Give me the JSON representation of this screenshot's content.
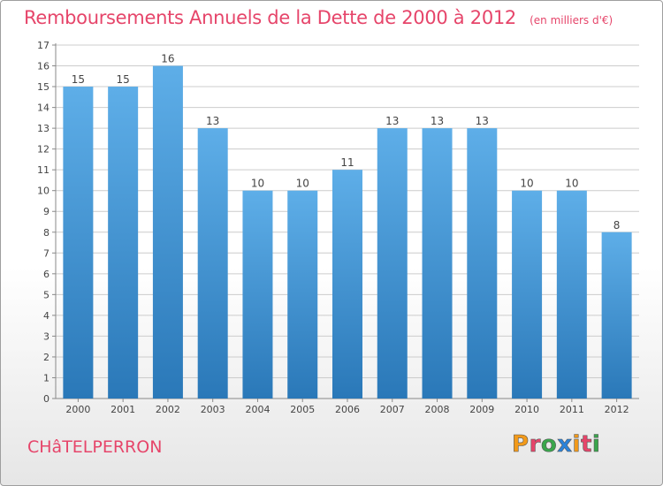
{
  "header": {
    "title": "Remboursements Annuels de la Dette de 2000 à 2012",
    "unit": "(en milliers d'€)"
  },
  "footer": {
    "commune": "CHâTELPERRON",
    "brand": "Proxiti",
    "brand_colors": [
      "#f29a1a",
      "#e6456a",
      "#3aa64c",
      "#2b83d9",
      "#f29a1a",
      "#e6456a",
      "#3aa64c"
    ]
  },
  "colors": {
    "title": "#e6456a",
    "bar_top": "#5eaee8",
    "bar_bottom": "#2a78b8",
    "grid": "#cccccc",
    "axis": "#888888"
  },
  "chart_data": {
    "type": "bar",
    "title": "Remboursements Annuels de la Dette de 2000 à 2012",
    "categories": [
      "2000",
      "2001",
      "2002",
      "2003",
      "2004",
      "2005",
      "2006",
      "2007",
      "2008",
      "2009",
      "2010",
      "2011",
      "2012"
    ],
    "values": [
      15,
      15,
      16,
      13,
      10,
      10,
      11,
      13,
      13,
      13,
      10,
      10,
      8
    ],
    "data_labels": [
      "15",
      "15",
      "16",
      "13",
      "10",
      "10",
      "11",
      "13",
      "13",
      "13",
      "10",
      "10",
      "8"
    ],
    "ylim": [
      0,
      17
    ],
    "yticks": [
      "0",
      "1",
      "2",
      "3",
      "4",
      "5",
      "6",
      "7",
      "8",
      "9",
      "10",
      "11",
      "12",
      "13",
      "14",
      "15",
      "16",
      "17"
    ],
    "grid": true
  }
}
